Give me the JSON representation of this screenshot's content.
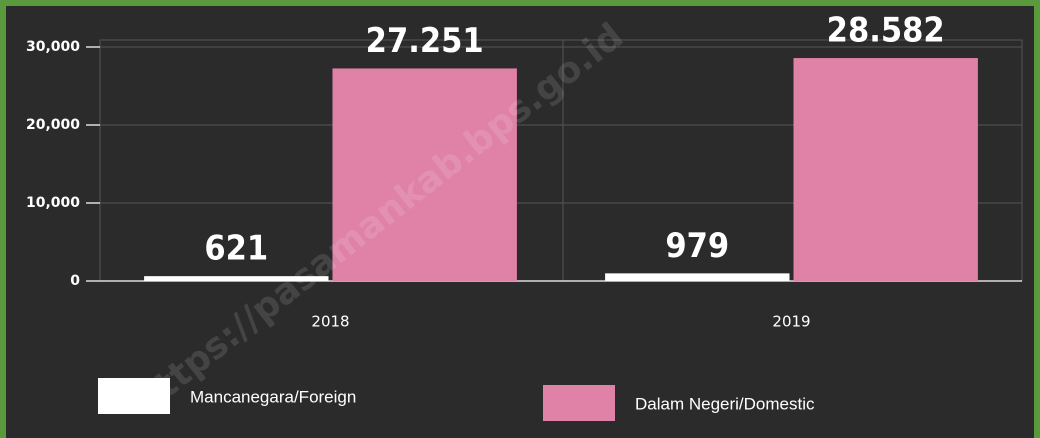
{
  "chart_data": {
    "type": "bar",
    "categories": [
      "2018",
      "2019"
    ],
    "series": [
      {
        "name": "Mancanegara/Foreign",
        "color": "#ffffff",
        "values": [
          621,
          979
        ],
        "value_labels": [
          "621",
          "979"
        ]
      },
      {
        "name": "Dalam Negeri/Domestic",
        "color": "#e082a8",
        "values": [
          27251,
          28582
        ],
        "value_labels": [
          "27.251",
          "28.582"
        ]
      }
    ],
    "ylim": [
      0,
      30000
    ],
    "yticks": [
      0,
      {
        "value": 10000,
        "label": "10,000"
      },
      {
        "value": 20000,
        "label": "20,000"
      },
      {
        "value": 30000,
        "label": "30,000"
      }
    ],
    "grid": true,
    "watermark": "https://pasamankab.bps.go.id"
  }
}
